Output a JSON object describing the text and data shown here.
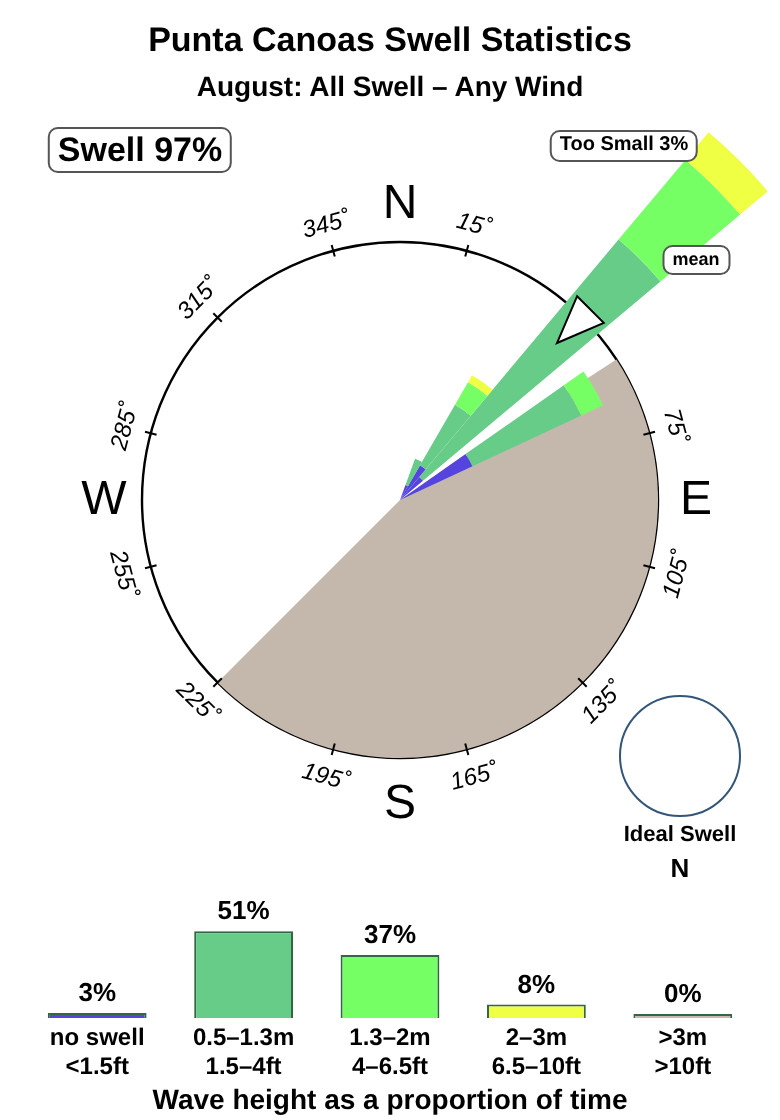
{
  "chart_data": [
    {
      "type": "other",
      "title": "Punta Canoas Swell Statistics",
      "subtitle": "August: All Swell – Any Wind",
      "annotations": [
        "Swell 97%",
        "Too Small 3%",
        "mean",
        "Ideal Swell",
        "N",
        "N",
        "E",
        "S",
        "W",
        "15˚",
        "75˚",
        "105˚",
        "135˚",
        "165˚",
        "195˚",
        "225˚",
        "255˚",
        "285˚",
        "315˚",
        "345˚"
      ]
    },
    {
      "type": "bar",
      "categories": [
        "no swell\n<1.5ft",
        "0.5–1.3m\n1.5–4ft",
        "1.3–2m\n4–6.5ft",
        "2–3m\n6.5–10ft",
        ">3m\n>10ft"
      ],
      "values": [
        3,
        51,
        37,
        8,
        0
      ],
      "value_labels": [
        "3%",
        "51%",
        "37%",
        "8%",
        "0%"
      ],
      "colors": [
        "#5544dd",
        "#66cc88",
        "#77ff66",
        "#eeff44",
        "#c8b8b0"
      ],
      "tick_labels": "x",
      "xlabel": "Wave height as a proportion of time",
      "legend": false,
      "grid": false
    }
  ]
}
